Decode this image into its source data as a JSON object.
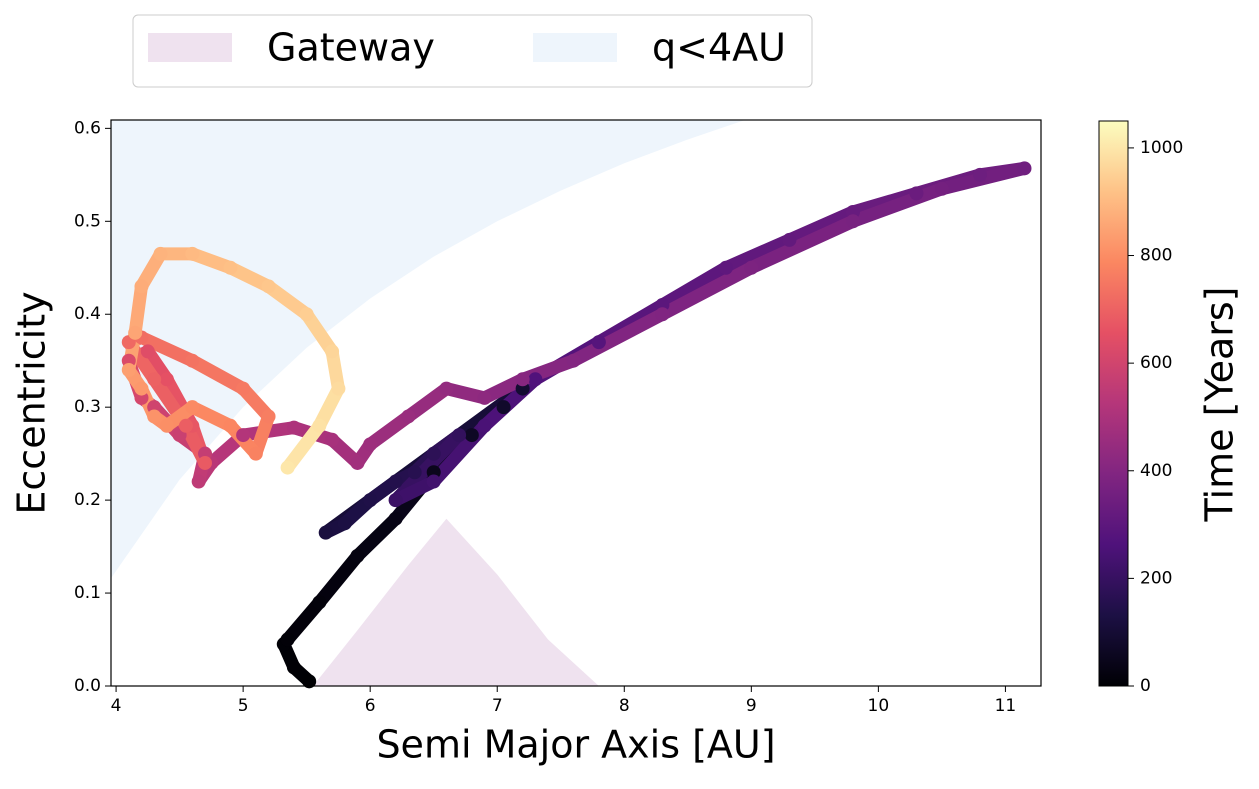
{
  "chart_data": {
    "type": "scatter",
    "xlabel": "Semi Major Axis [AU]",
    "ylabel": "Eccentricity",
    "xlim": [
      3.96,
      11.28
    ],
    "ylim": [
      0,
      0.609
    ],
    "xticks": [
      4,
      5,
      6,
      7,
      8,
      9,
      10,
      11
    ],
    "yticks": [
      {
        "value": 0,
        "label": "0.0"
      },
      0.1,
      0.2,
      0.3,
      0.4,
      0.5,
      0.6
    ],
    "legend": "upper center outside",
    "regions": [
      {
        "name": "Gateway",
        "color": "#efe2ef",
        "x": [
          5.55,
          5.9,
          6.3,
          6.6,
          7.0,
          7.4,
          7.8
        ],
        "y": [
          0,
          0.06,
          0.13,
          0.18,
          0.12,
          0.05,
          0
        ]
      },
      {
        "name": "q<4AU",
        "color": "#eef5fc",
        "x": [
          3.96,
          4.5,
          5,
          5.5,
          6,
          6.5,
          7,
          7.5,
          8,
          8.5,
          8.95,
          3.96
        ],
        "y": [
          0.116,
          0.222,
          0.3,
          0.364,
          0.417,
          0.462,
          0.5,
          0.533,
          0.5625,
          0.588,
          0.609,
          0.609
        ]
      }
    ],
    "series": [
      {
        "x": [
          5.52,
          5.4,
          5.32,
          5.35,
          5.6,
          5.9,
          6.2,
          6.5,
          6.8,
          7.05,
          7.2,
          5.65,
          5.8,
          6.0,
          6.2,
          6.35,
          6.5,
          6.7,
          6.2,
          6.5,
          6.9,
          7.3,
          7.8,
          8.3,
          8.8,
          9.3,
          9.8,
          10.3,
          10.8,
          11.15,
          10.5,
          9.8,
          9.0,
          8.3,
          7.6,
          7.2,
          6.9,
          6.6,
          6.3,
          6.0,
          5.9,
          5.7,
          5.4,
          5.0,
          4.75,
          4.65,
          4.7,
          4.5,
          4.3,
          4.2,
          4.1,
          4.25,
          4.4,
          4.6,
          4.7,
          4.55,
          4.3,
          4.1,
          4.2,
          4.6,
          5.0,
          5.2,
          5.1,
          4.9,
          4.6,
          4.4,
          4.3,
          4.2,
          4.1,
          4.15,
          4.2,
          4.35,
          4.6,
          4.9,
          5.2,
          5.5,
          5.7,
          5.75,
          5.6,
          5.35
        ],
        "y": [
          0.005,
          0.02,
          0.045,
          0.05,
          0.09,
          0.14,
          0.18,
          0.23,
          0.27,
          0.3,
          0.32,
          0.165,
          0.175,
          0.2,
          0.22,
          0.23,
          0.25,
          0.27,
          0.2,
          0.22,
          0.28,
          0.33,
          0.37,
          0.41,
          0.45,
          0.48,
          0.51,
          0.53,
          0.55,
          0.557,
          0.535,
          0.5,
          0.45,
          0.4,
          0.35,
          0.33,
          0.31,
          0.32,
          0.29,
          0.26,
          0.24,
          0.265,
          0.278,
          0.27,
          0.24,
          0.22,
          0.25,
          0.27,
          0.3,
          0.31,
          0.35,
          0.36,
          0.33,
          0.28,
          0.24,
          0.28,
          0.33,
          0.37,
          0.375,
          0.35,
          0.32,
          0.29,
          0.25,
          0.28,
          0.3,
          0.28,
          0.29,
          0.32,
          0.34,
          0.38,
          0.43,
          0.465,
          0.465,
          0.45,
          0.43,
          0.4,
          0.36,
          0.32,
          0.28,
          0.235
        ],
        "time": [
          0,
          3,
          6,
          9,
          15,
          25,
          35,
          50,
          65,
          80,
          95,
          120,
          130,
          140,
          150,
          160,
          175,
          190,
          210,
          230,
          250,
          265,
          280,
          295,
          305,
          315,
          325,
          335,
          342,
          350,
          360,
          370,
          380,
          390,
          400,
          410,
          425,
          440,
          455,
          465,
          475,
          490,
          505,
          520,
          535,
          550,
          565,
          580,
          595,
          610,
          625,
          640,
          655,
          670,
          680,
          690,
          700,
          715,
          725,
          740,
          755,
          765,
          775,
          785,
          795,
          805,
          815,
          825,
          840,
          855,
          870,
          885,
          900,
          915,
          930,
          945,
          960,
          975,
          990,
          1000
        ]
      }
    ],
    "colorbar": {
      "label": "Time [Years]",
      "clim": [
        0,
        1050
      ],
      "ticks": [
        0,
        200,
        400,
        600,
        800,
        1000
      ],
      "colormap": [
        "#000004",
        "#1c1044",
        "#4f127b",
        "#812581",
        "#b5367a",
        "#e55064",
        "#fb8761",
        "#fec287",
        "#fcfdbf"
      ]
    }
  }
}
